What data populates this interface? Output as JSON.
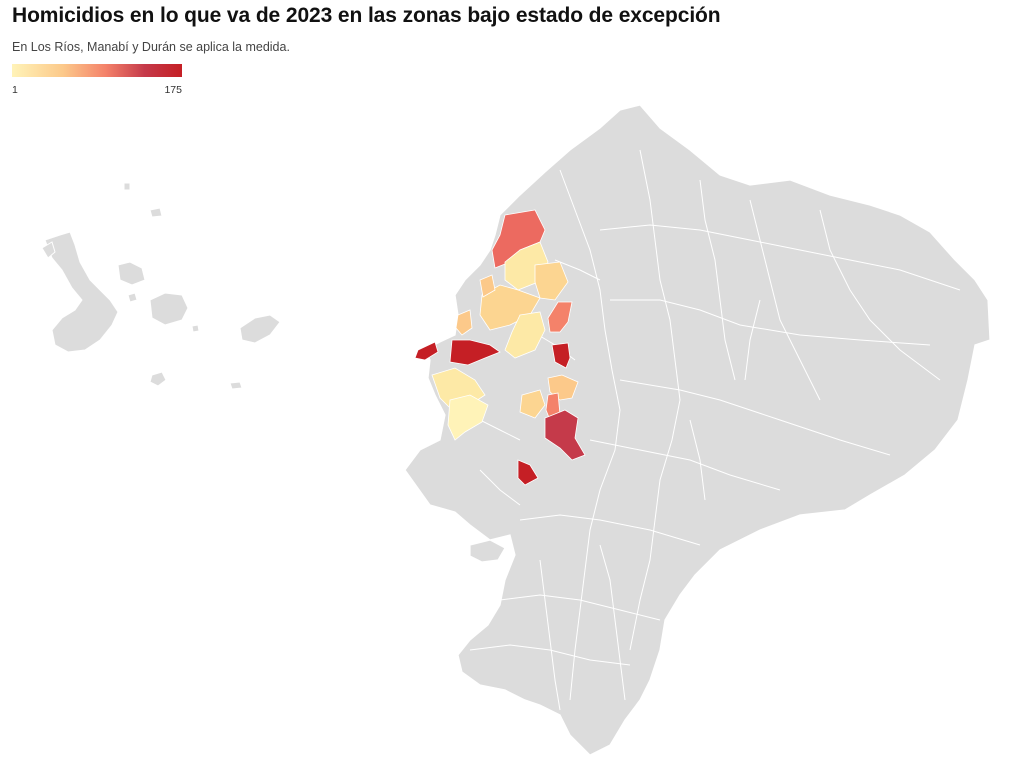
{
  "title": "Homicidios en lo que va de 2023 en las zonas bajo estado de excepción",
  "subtitle": "En Los Ríos, Manabí y Durán se aplica la medida.",
  "legend": {
    "min_label": "1",
    "max_label": "175",
    "colors": [
      "#fff3b8",
      "#fcc98a",
      "#f4826a",
      "#c53a4a",
      "#c51f25"
    ]
  },
  "map": {
    "base_color": "#dcdcdc",
    "border_color": "#ffffff"
  }
}
